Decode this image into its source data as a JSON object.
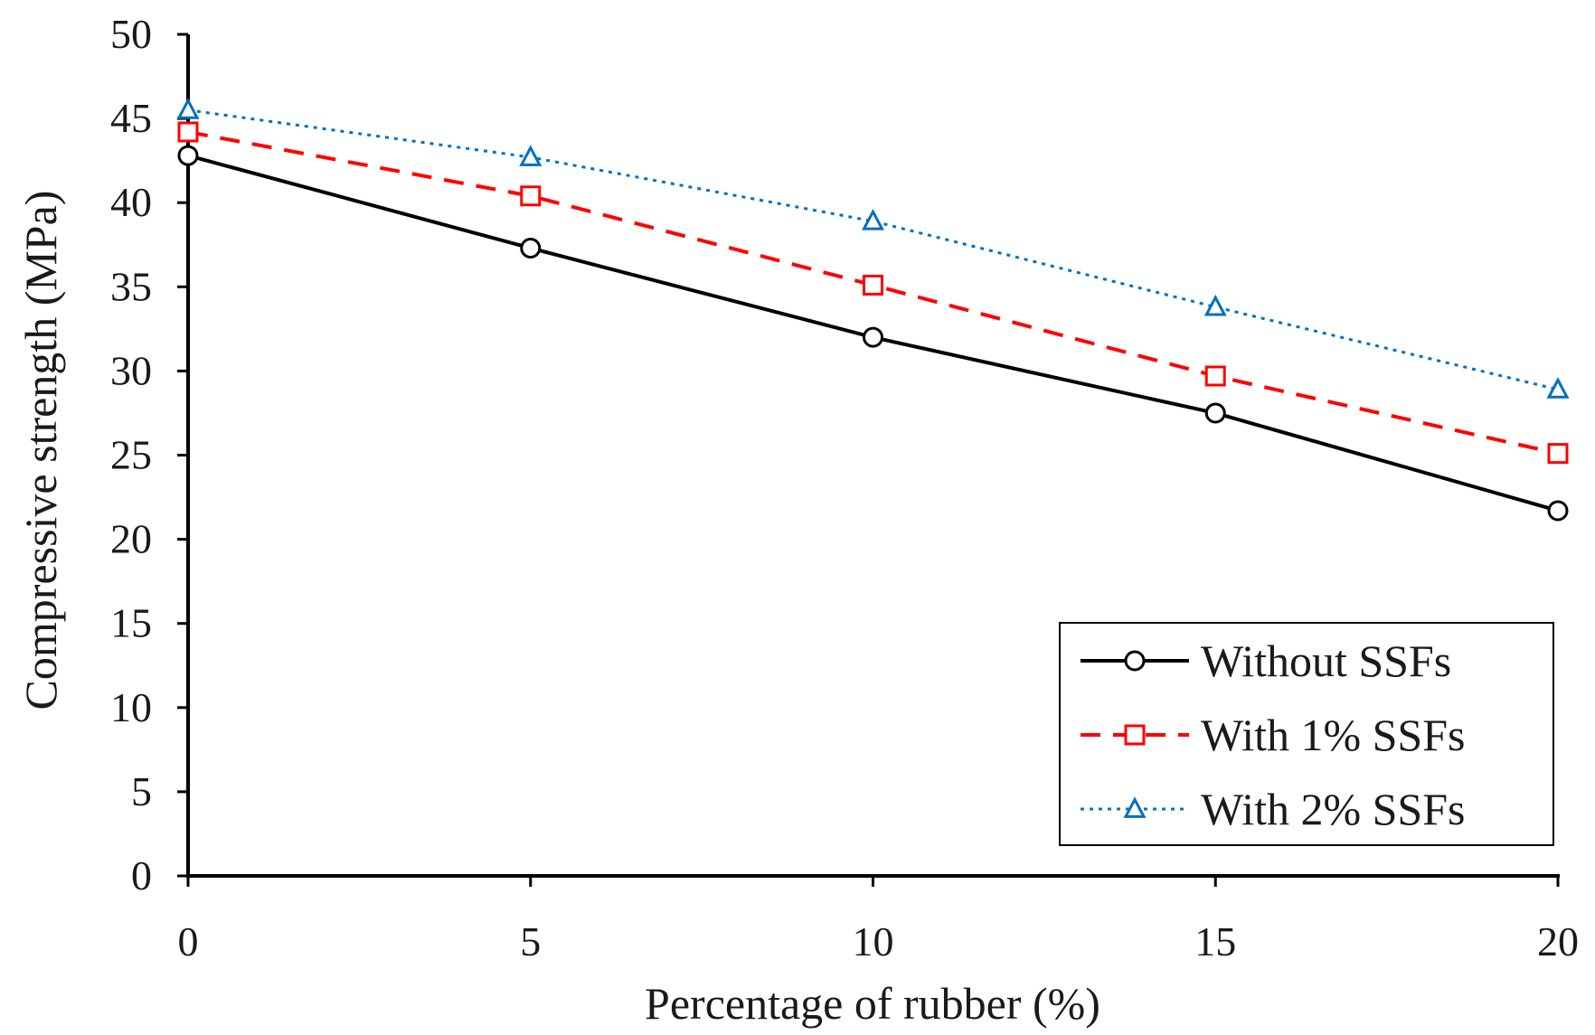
{
  "chart_data": {
    "type": "line",
    "title": "",
    "xlabel": "Percentage  of rubber (%)",
    "ylabel": "Compressive  strength (MPa)",
    "x": [
      0,
      5,
      10,
      15,
      20
    ],
    "xlim": [
      0,
      20
    ],
    "ylim": [
      0,
      50
    ],
    "xticks": [
      "0",
      "5",
      "10",
      "15",
      "20"
    ],
    "yticks": [
      "0",
      "5",
      "10",
      "15",
      "20",
      "25",
      "30",
      "35",
      "40",
      "45",
      "50"
    ],
    "grid": false,
    "legend_position": "bottom-right",
    "series": [
      {
        "name": "Without SSFs",
        "values": [
          42.8,
          37.3,
          32.0,
          27.5,
          21.7
        ],
        "color": "#000000",
        "line": "solid",
        "marker": "circle"
      },
      {
        "name": "With 1% SSFs",
        "values": [
          44.2,
          40.4,
          35.1,
          29.7,
          25.1
        ],
        "color": "#ff0000",
        "line": "dashed",
        "marker": "square"
      },
      {
        "name": "With 2% SSFs",
        "values": [
          45.5,
          42.7,
          38.9,
          33.8,
          28.9
        ],
        "color": "#0070c0",
        "line": "dotted",
        "marker": "triangle"
      }
    ]
  }
}
